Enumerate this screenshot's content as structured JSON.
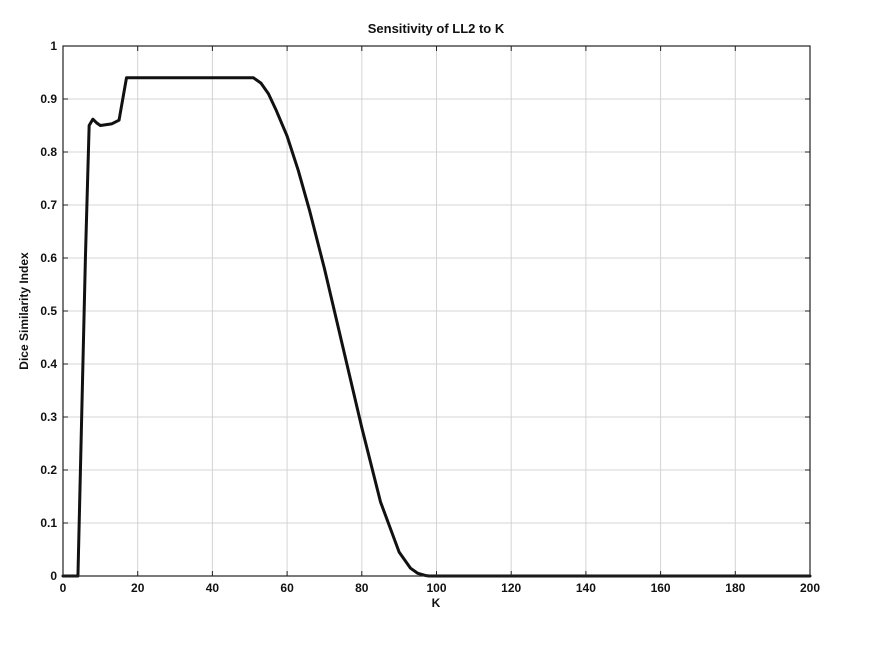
{
  "chart_data": {
    "type": "line",
    "title": "Sensitivity of LL2 to K",
    "xlabel": "K",
    "ylabel": "Dice Similarity Index",
    "xlim": [
      0,
      200
    ],
    "ylim": [
      0,
      1
    ],
    "x_ticks": [
      0,
      20,
      40,
      60,
      80,
      100,
      120,
      140,
      160,
      180,
      200
    ],
    "x_tick_labels": [
      "0",
      "20",
      "40",
      "60",
      "80",
      "100",
      "120",
      "140",
      "160",
      "180",
      "200"
    ],
    "y_ticks": [
      0,
      0.1,
      0.2,
      0.3,
      0.4,
      0.5,
      0.6,
      0.7,
      0.8,
      0.9,
      1
    ],
    "y_tick_labels": [
      "0",
      "0.1",
      "0.2",
      "0.3",
      "0.4",
      "0.5",
      "0.6",
      "0.7",
      "0.8",
      "0.9",
      "1"
    ],
    "grid": true,
    "series": [
      {
        "color": "#111111",
        "x": [
          0,
          4,
          5,
          6,
          7,
          8,
          9,
          10,
          13,
          15,
          17,
          20,
          30,
          40,
          50,
          51,
          53,
          55,
          57,
          60,
          63,
          66,
          70,
          75,
          80,
          85,
          90,
          93,
          95,
          97,
          98,
          99,
          100,
          110,
          120,
          140,
          160,
          180,
          200
        ],
        "y": [
          0,
          0,
          0.3,
          0.6,
          0.85,
          0.862,
          0.855,
          0.85,
          0.853,
          0.86,
          0.94,
          0.94,
          0.94,
          0.94,
          0.94,
          0.94,
          0.93,
          0.91,
          0.88,
          0.83,
          0.765,
          0.69,
          0.58,
          0.43,
          0.28,
          0.14,
          0.045,
          0.015,
          0.005,
          0.001,
          0,
          0,
          0,
          0,
          0,
          0,
          0,
          0,
          0
        ]
      }
    ]
  }
}
